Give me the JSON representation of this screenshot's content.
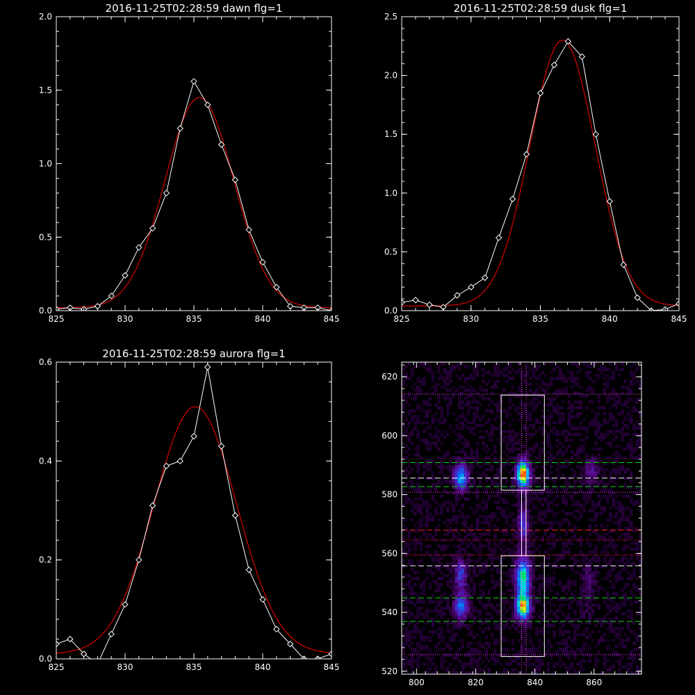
{
  "chart_data": [
    {
      "type": "line",
      "title": "2016-11-25T02:28:59 dawn flg=1",
      "xlim": [
        825,
        845
      ],
      "ylim": [
        0,
        2.0
      ],
      "xticks": [
        "825",
        "830",
        "835",
        "840",
        "845"
      ],
      "yticks": [
        "0.0",
        "0.5",
        "1.0",
        "1.5",
        "2.0"
      ],
      "series": [
        {
          "style": "data-diamonds",
          "color": "#ffffff",
          "x": [
            825,
            826,
            827,
            828,
            829,
            830,
            831,
            832,
            833,
            834,
            835,
            836,
            837,
            838,
            839,
            840,
            841,
            842,
            843,
            844,
            845
          ],
          "y": [
            0.01,
            0.02,
            0.01,
            0.03,
            0.1,
            0.24,
            0.43,
            0.56,
            0.8,
            1.24,
            1.56,
            1.4,
            1.13,
            0.89,
            0.55,
            0.33,
            0.16,
            0.03,
            0.02,
            0.02,
            0.0
          ]
        },
        {
          "style": "gaussian-fit",
          "color": "#cc0000",
          "amplitude": 1.43,
          "center": 835.4,
          "sigma": 2.5,
          "offset": 0.02
        }
      ]
    },
    {
      "type": "line",
      "title": "2016-11-25T02:28:59 dusk flg=1",
      "xlim": [
        825,
        845
      ],
      "ylim": [
        0,
        2.5
      ],
      "xticks": [
        "825",
        "830",
        "835",
        "840",
        "845"
      ],
      "yticks": [
        "0.0",
        "0.5",
        "1.0",
        "1.5",
        "2.0",
        "2.5"
      ],
      "series": [
        {
          "style": "data-diamonds",
          "color": "#ffffff",
          "x": [
            825,
            826,
            827,
            828,
            829,
            830,
            831,
            832,
            833,
            834,
            835,
            836,
            837,
            838,
            839,
            840,
            841,
            842,
            843,
            844,
            845
          ],
          "y": [
            0.07,
            0.09,
            0.05,
            0.03,
            0.13,
            0.2,
            0.28,
            0.62,
            0.95,
            1.33,
            1.85,
            2.09,
            2.29,
            2.16,
            1.5,
            0.93,
            0.39,
            0.11,
            0.0,
            0.01,
            0.06
          ]
        },
        {
          "style": "gaussian-fit",
          "color": "#cc0000",
          "amplitude": 2.26,
          "center": 836.6,
          "sigma": 2.35,
          "offset": 0.04
        }
      ]
    },
    {
      "type": "line",
      "title": "2016-11-25T02:28:59 aurora flg=1",
      "xlim": [
        825,
        845
      ],
      "ylim": [
        0,
        0.6
      ],
      "xticks": [
        "825",
        "830",
        "835",
        "840",
        "845"
      ],
      "yticks": [
        "0.0",
        "0.2",
        "0.4",
        "0.6"
      ],
      "series": [
        {
          "style": "data-diamonds",
          "color": "#ffffff",
          "x": [
            825,
            826,
            827,
            828,
            829,
            830,
            831,
            832,
            833,
            834,
            835,
            836,
            837,
            838,
            839,
            840,
            841,
            842,
            843,
            844,
            845
          ],
          "y": [
            0.03,
            0.04,
            0.01,
            -0.01,
            0.05,
            0.11,
            0.2,
            0.31,
            0.39,
            0.4,
            0.45,
            0.59,
            0.43,
            0.29,
            0.18,
            0.12,
            0.06,
            0.03,
            0.0,
            0.0,
            0.01
          ]
        },
        {
          "style": "gaussian-fit",
          "color": "#cc0000",
          "amplitude": 0.5,
          "center": 835.1,
          "sigma": 3.0,
          "offset": 0.01
        }
      ]
    },
    {
      "type": "heatmap",
      "title": "",
      "xlim": [
        795,
        876
      ],
      "ylim": [
        519,
        625
      ],
      "xticks": [
        "800",
        "820",
        "840",
        "860"
      ],
      "yticks": [
        "520",
        "540",
        "560",
        "580",
        "600",
        "620"
      ],
      "blobs": [
        {
          "x": 815,
          "y": 586,
          "sx": 1.6,
          "sy": 3.0,
          "amp": 0.55
        },
        {
          "x": 836,
          "y": 587,
          "sx": 1.5,
          "sy": 3.0,
          "amp": 1.0
        },
        {
          "x": 836,
          "y": 570,
          "sx": 1.2,
          "sy": 4.0,
          "amp": 0.35
        },
        {
          "x": 836,
          "y": 552,
          "sx": 1.6,
          "sy": 4.5,
          "amp": 0.7
        },
        {
          "x": 836,
          "y": 542,
          "sx": 1.6,
          "sy": 3.0,
          "amp": 0.85
        },
        {
          "x": 815,
          "y": 553,
          "sx": 1.4,
          "sy": 3.5,
          "amp": 0.35
        },
        {
          "x": 815,
          "y": 542,
          "sx": 1.6,
          "sy": 3.0,
          "amp": 0.45
        },
        {
          "x": 859,
          "y": 588,
          "sx": 1.5,
          "sy": 3.0,
          "amp": 0.2
        },
        {
          "x": 858,
          "y": 548,
          "sx": 1.5,
          "sy": 6.0,
          "amp": 0.12
        }
      ],
      "boxes": [
        {
          "x0": 828.6,
          "x1": 843.2,
          "y0": 581.5,
          "y1": 613.8,
          "color": "#ffffff"
        },
        {
          "x0": 828.6,
          "x1": 843.2,
          "y0": 525.0,
          "y1": 559.2,
          "color": "#ffffff"
        }
      ],
      "hlines": [
        {
          "y": 614.1,
          "color": "#ff44ff",
          "dash": "dotted"
        },
        {
          "y": 590.9,
          "color": "#00dd00",
          "dash": "dashed"
        },
        {
          "y": 585.6,
          "color": "#ffffff",
          "dash": "dashed"
        },
        {
          "y": 582.7,
          "color": "#00dd00",
          "dash": "dashed"
        },
        {
          "y": 580.8,
          "color": "#ff44ff",
          "dash": "dotted"
        },
        {
          "y": 567.9,
          "color": "#ff2222",
          "dash": "dashed"
        },
        {
          "y": 564.6,
          "color": "#ff2222",
          "dash": "dotted"
        },
        {
          "y": 559.5,
          "color": "#ff2222",
          "dash": "dotted"
        },
        {
          "y": 555.8,
          "color": "#ffffff",
          "dash": "dashed"
        },
        {
          "y": 544.9,
          "color": "#00dd00",
          "dash": "dashed"
        },
        {
          "y": 536.9,
          "color": "#00dd00",
          "dash": "dashed"
        },
        {
          "y": 525.6,
          "color": "#ff44ff",
          "dash": "dotted"
        }
      ],
      "vlines": [
        {
          "x": 835.5,
          "color": "#ff44ff",
          "dash": "dotted"
        },
        {
          "x": 837.0,
          "color": "#ff44ff",
          "dash": "dotted"
        }
      ]
    }
  ]
}
